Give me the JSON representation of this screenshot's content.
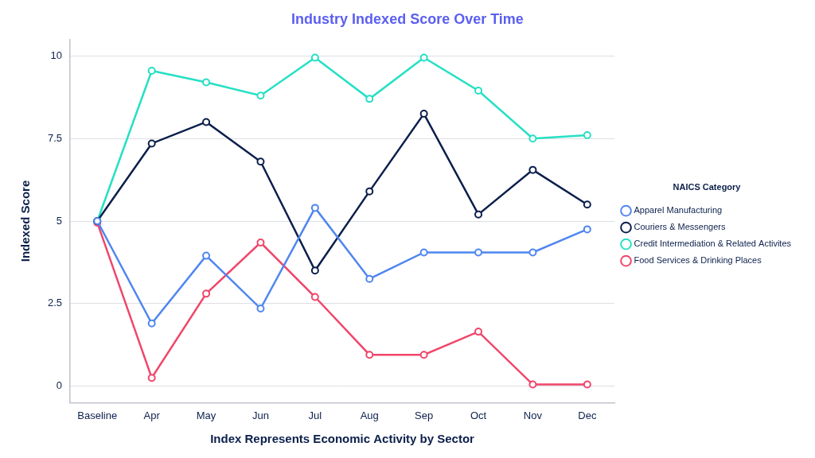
{
  "chart_data": {
    "type": "line",
    "title": "Industry Indexed Score Over Time",
    "x_label": "Index Represents Economic Activity by Sector",
    "y_label": "Indexed Score",
    "legend_title": "NAICS Category",
    "legend": "right",
    "grid": true,
    "marker": "circle",
    "categories": [
      "Baseline",
      "Apr",
      "May",
      "Jun",
      "Jul",
      "Aug",
      "Sep",
      "Oct",
      "Nov",
      "Dec"
    ],
    "ylim": [
      -0.5,
      10.5
    ],
    "yticks": [
      0,
      2.5,
      5,
      7.5,
      10
    ],
    "series": [
      {
        "name": "Apparel Manufacturing",
        "color": "#4f86f0",
        "values": [
          5.0,
          1.9,
          3.95,
          2.35,
          5.4,
          3.25,
          4.05,
          4.05,
          4.05,
          4.75
        ]
      },
      {
        "name": "Couriers & Messengers",
        "color": "#0b1f4b",
        "values": [
          5.0,
          7.35,
          8.0,
          6.8,
          3.5,
          5.9,
          8.25,
          5.2,
          6.55,
          5.5
        ]
      },
      {
        "name": "Credit Intermediation & Related Activites",
        "color": "#25e0c4",
        "values": [
          5.0,
          9.55,
          9.2,
          8.8,
          9.95,
          8.7,
          9.95,
          8.95,
          7.5,
          7.6
        ]
      },
      {
        "name": "Food Services & Drinking Places",
        "color": "#f0466a",
        "values": [
          4.95,
          0.25,
          2.8,
          4.35,
          2.7,
          0.95,
          0.95,
          1.65,
          0.05,
          0.05
        ]
      }
    ]
  }
}
